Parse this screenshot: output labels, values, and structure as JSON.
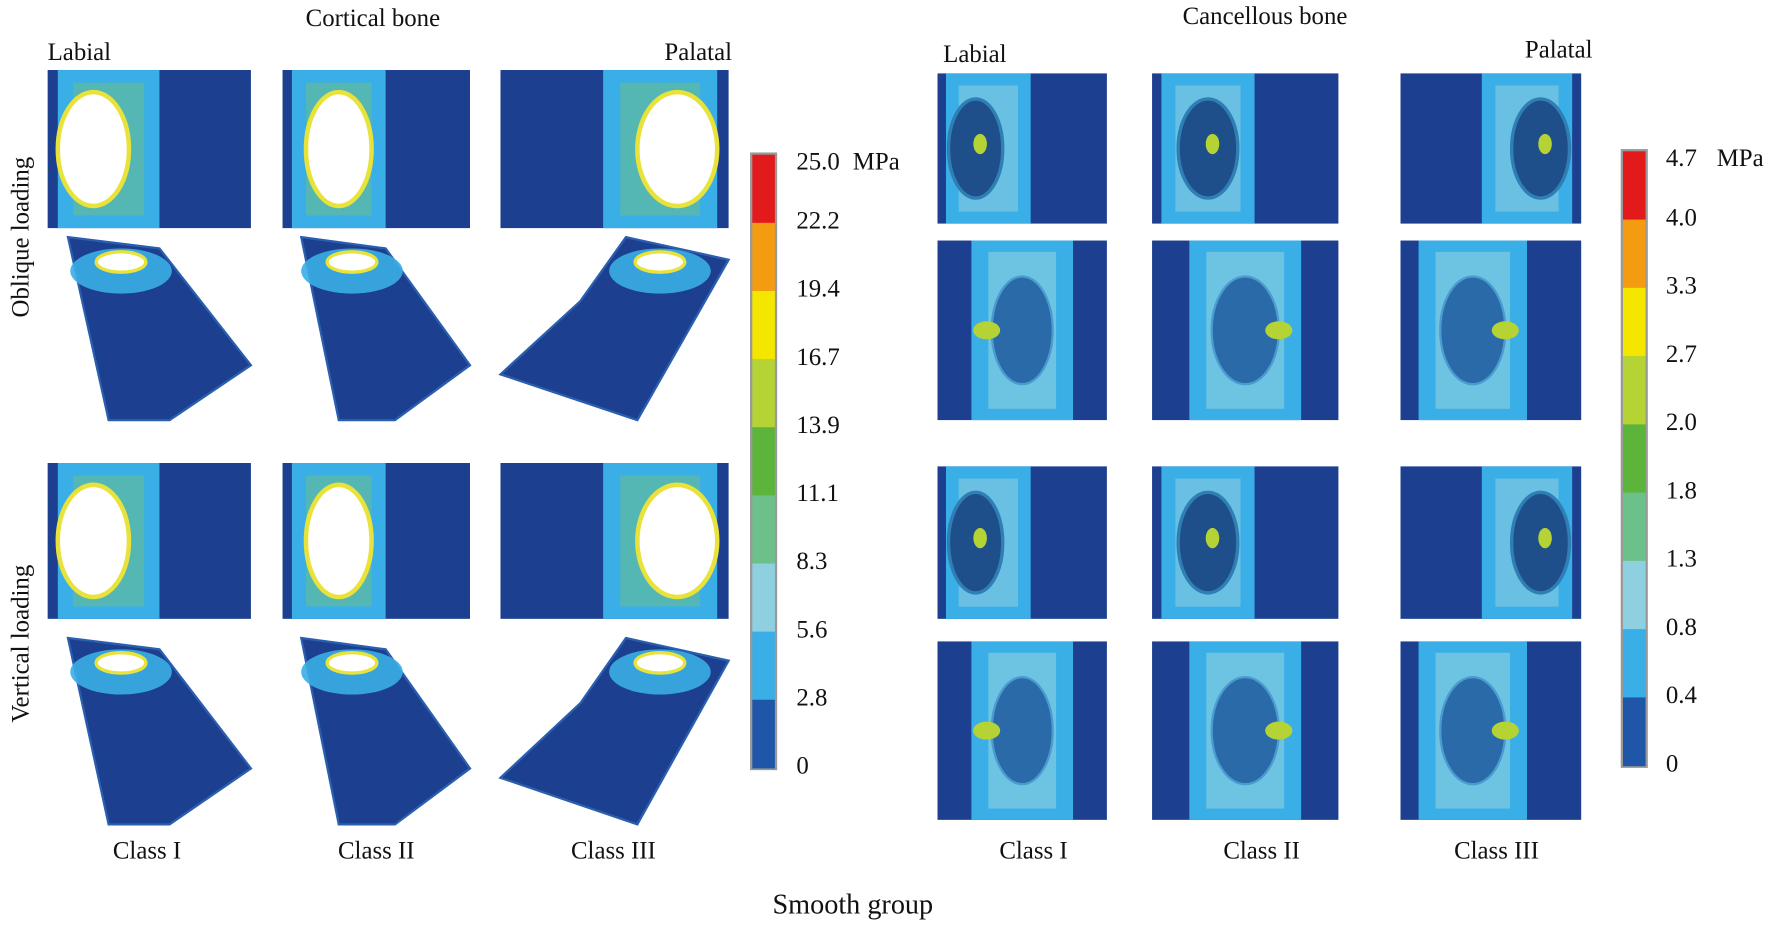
{
  "left": {
    "title": "Cortical bone",
    "labial": "Labial",
    "palatal": "Palatal",
    "columns": [
      "Class I",
      "Class II",
      "Class III"
    ],
    "colorbar": {
      "unit": "MPa",
      "ticks": [
        "25.0",
        "22.2",
        "19.4",
        "16.7",
        "13.9",
        "11.1",
        "8.3",
        "5.6",
        "2.8",
        "0"
      ]
    }
  },
  "right": {
    "title": "Cancellous bone",
    "labial": "Labial",
    "palatal": "Palatal",
    "columns": [
      "Class I",
      "Class II",
      "Class III"
    ],
    "colorbar": {
      "unit": "MPa",
      "ticks": [
        "4.7",
        "4.0",
        "3.3",
        "2.7",
        "2.0",
        "1.8",
        "1.3",
        "0.8",
        "0.4",
        "0"
      ]
    }
  },
  "row_labels": [
    "Oblique loading",
    "Vertical loading"
  ],
  "caption": "Smooth group"
}
